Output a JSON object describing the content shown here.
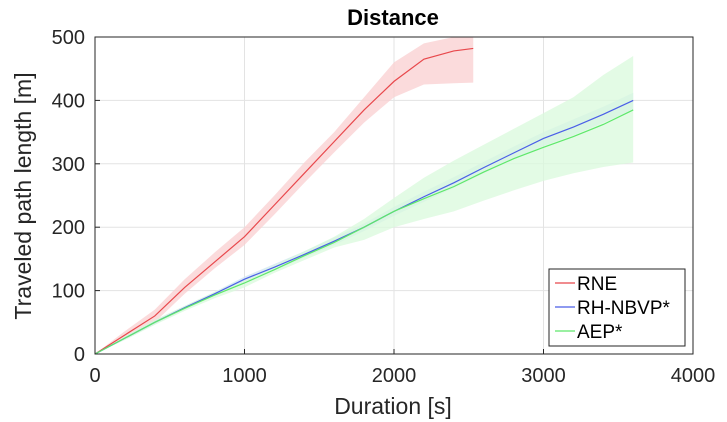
{
  "chart_data": {
    "type": "line",
    "title": "Distance",
    "xlabel": "Duration [s]",
    "ylabel": "Traveled path length [m]",
    "xlim": [
      0,
      4000
    ],
    "ylim": [
      0,
      500
    ],
    "xticks": [
      0,
      1000,
      2000,
      3000,
      4000
    ],
    "yticks": [
      0,
      100,
      200,
      300,
      400,
      500
    ],
    "xtick_labels": [
      "0",
      "1000",
      "2000",
      "3000",
      "4000"
    ],
    "ytick_labels": [
      "0",
      "100",
      "200",
      "300",
      "400",
      "500"
    ],
    "grid": true,
    "legend_position": "bottom-right",
    "series": [
      {
        "name": "RNE",
        "color": "#e8484c",
        "band_color": "#f9cfd0",
        "x": [
          0,
          200,
          400,
          600,
          800,
          1000,
          1200,
          1400,
          1600,
          1800,
          2000,
          2200,
          2400,
          2530
        ],
        "y": [
          0,
          30,
          60,
          105,
          145,
          185,
          235,
          285,
          335,
          385,
          430,
          465,
          478,
          482
        ],
        "lower": [
          0,
          25,
          50,
          95,
          135,
          172,
          220,
          270,
          318,
          365,
          405,
          425,
          427,
          428
        ],
        "upper": [
          0,
          36,
          70,
          118,
          160,
          200,
          250,
          302,
          350,
          405,
          460,
          490,
          500,
          500
        ]
      },
      {
        "name": "RH-NBVP*",
        "color": "#4a5ee8",
        "band_color": "#cfe4f2",
        "x": [
          0,
          200,
          400,
          600,
          800,
          1000,
          1200,
          1400,
          1600,
          1800,
          2000,
          2200,
          2400,
          2600,
          2800,
          3000,
          3200,
          3400,
          3600
        ],
        "y": [
          0,
          25,
          50,
          73,
          95,
          118,
          137,
          157,
          178,
          200,
          225,
          248,
          270,
          294,
          317,
          340,
          358,
          378,
          400
        ],
        "lower": [
          0,
          23,
          47,
          70,
          92,
          113,
          132,
          152,
          172,
          194,
          218,
          240,
          262,
          285,
          307,
          328,
          345,
          365,
          385
        ],
        "upper": [
          0,
          27,
          53,
          76,
          98,
          122,
          142,
          162,
          184,
          206,
          232,
          256,
          279,
          303,
          327,
          350,
          370,
          390,
          412
        ]
      },
      {
        "name": "AEP*",
        "color": "#5ee86a",
        "band_color": "#d9f9dc",
        "x": [
          0,
          200,
          400,
          600,
          800,
          1000,
          1200,
          1400,
          1600,
          1800,
          2000,
          2200,
          2400,
          2600,
          2800,
          3000,
          3200,
          3400,
          3600
        ],
        "y": [
          0,
          25,
          50,
          72,
          93,
          112,
          133,
          155,
          176,
          200,
          225,
          245,
          264,
          287,
          308,
          326,
          343,
          362,
          385
        ],
        "lower": [
          0,
          22,
          46,
          68,
          88,
          105,
          128,
          148,
          168,
          180,
          200,
          213,
          225,
          242,
          258,
          273,
          285,
          295,
          302
        ],
        "upper": [
          0,
          28,
          54,
          76,
          98,
          118,
          140,
          162,
          185,
          213,
          246,
          278,
          305,
          330,
          355,
          380,
          405,
          440,
          470
        ]
      }
    ]
  }
}
